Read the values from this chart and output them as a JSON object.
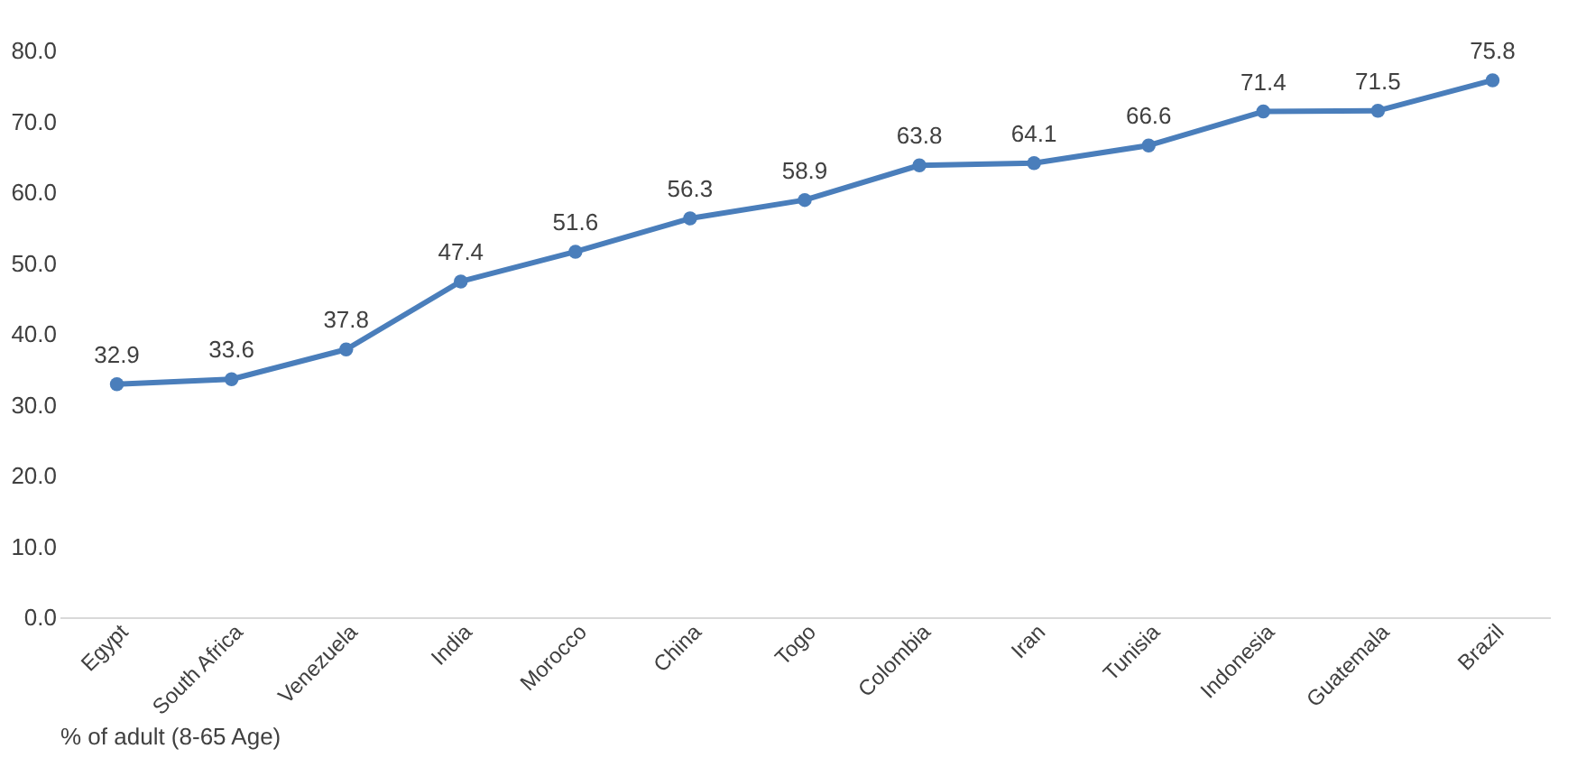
{
  "chart_data": {
    "type": "line",
    "categories": [
      "Egypt",
      "South Africa",
      "Venezuela",
      "India",
      "Morocco",
      "China",
      "Togo",
      "Colombia",
      "Iran",
      "Tunisia",
      "Indonesia",
      "Guatemala",
      "Brazil"
    ],
    "series": [
      {
        "color": "#4a7ebb",
        "values": [
          32.9,
          33.6,
          37.8,
          47.4,
          51.6,
          56.3,
          58.9,
          63.8,
          64.1,
          66.6,
          71.4,
          71.5,
          75.8
        ]
      }
    ],
    "xlabel": "% of adult (8-65 Age)",
    "ylim": [
      0,
      80
    ],
    "yticks": [
      {
        "value": 0,
        "label": "0.0"
      },
      {
        "value": 10,
        "label": "10.0"
      },
      {
        "value": 20,
        "label": "20.0"
      },
      {
        "value": 30,
        "label": "30.0"
      },
      {
        "value": 40,
        "label": "40.0"
      },
      {
        "value": 50,
        "label": "50.0"
      },
      {
        "value": 60,
        "label": "60.0"
      },
      {
        "value": 70,
        "label": "70.0"
      },
      {
        "value": 80,
        "label": "80.0"
      }
    ],
    "data_labels": true,
    "marker": "circle",
    "line_style": "solid",
    "grid": false
  }
}
